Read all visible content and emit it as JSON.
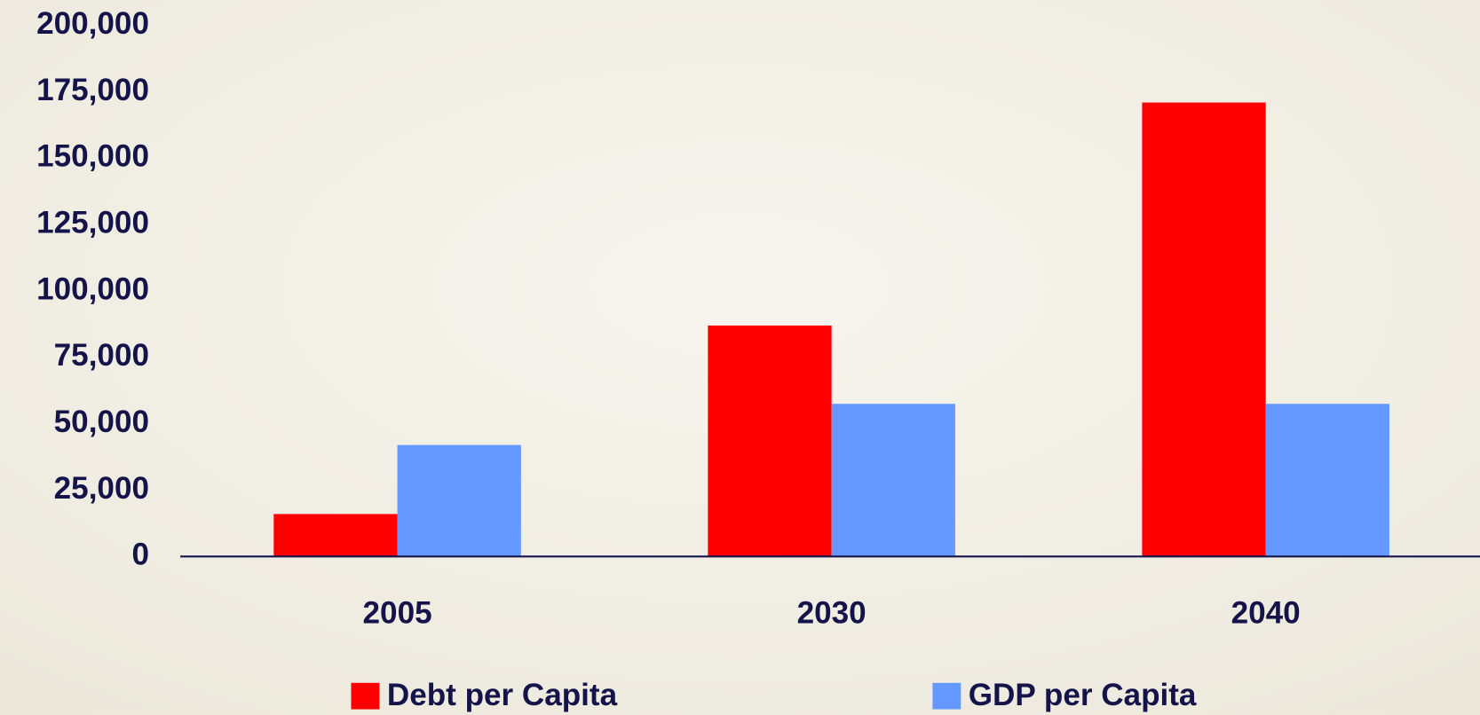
{
  "chart_data": {
    "type": "bar",
    "categories": [
      "2005",
      "2030",
      "2040"
    ],
    "series": [
      {
        "name": "Debt per Capita",
        "color": "#ff0000",
        "values": [
          16000,
          87000,
          171000
        ]
      },
      {
        "name": "GDP per Capita",
        "color": "#6699ff",
        "values": [
          42000,
          57500,
          57500
        ]
      }
    ],
    "ylim": [
      0,
      200000
    ],
    "yticks": [
      0,
      {
        "value": 25000,
        "label": "25,000"
      },
      {
        "value": 50000,
        "label": "50,000"
      },
      {
        "value": 75000,
        "label": "75,000"
      },
      {
        "value": 100000,
        "label": "100,000"
      },
      {
        "value": 125000,
        "label": "125,000"
      },
      {
        "value": 150000,
        "label": "150,000"
      },
      {
        "value": 175000,
        "label": "175,000"
      },
      {
        "value": 200000,
        "label": "200,000"
      }
    ],
    "grid": false,
    "legend": "bottom"
  }
}
